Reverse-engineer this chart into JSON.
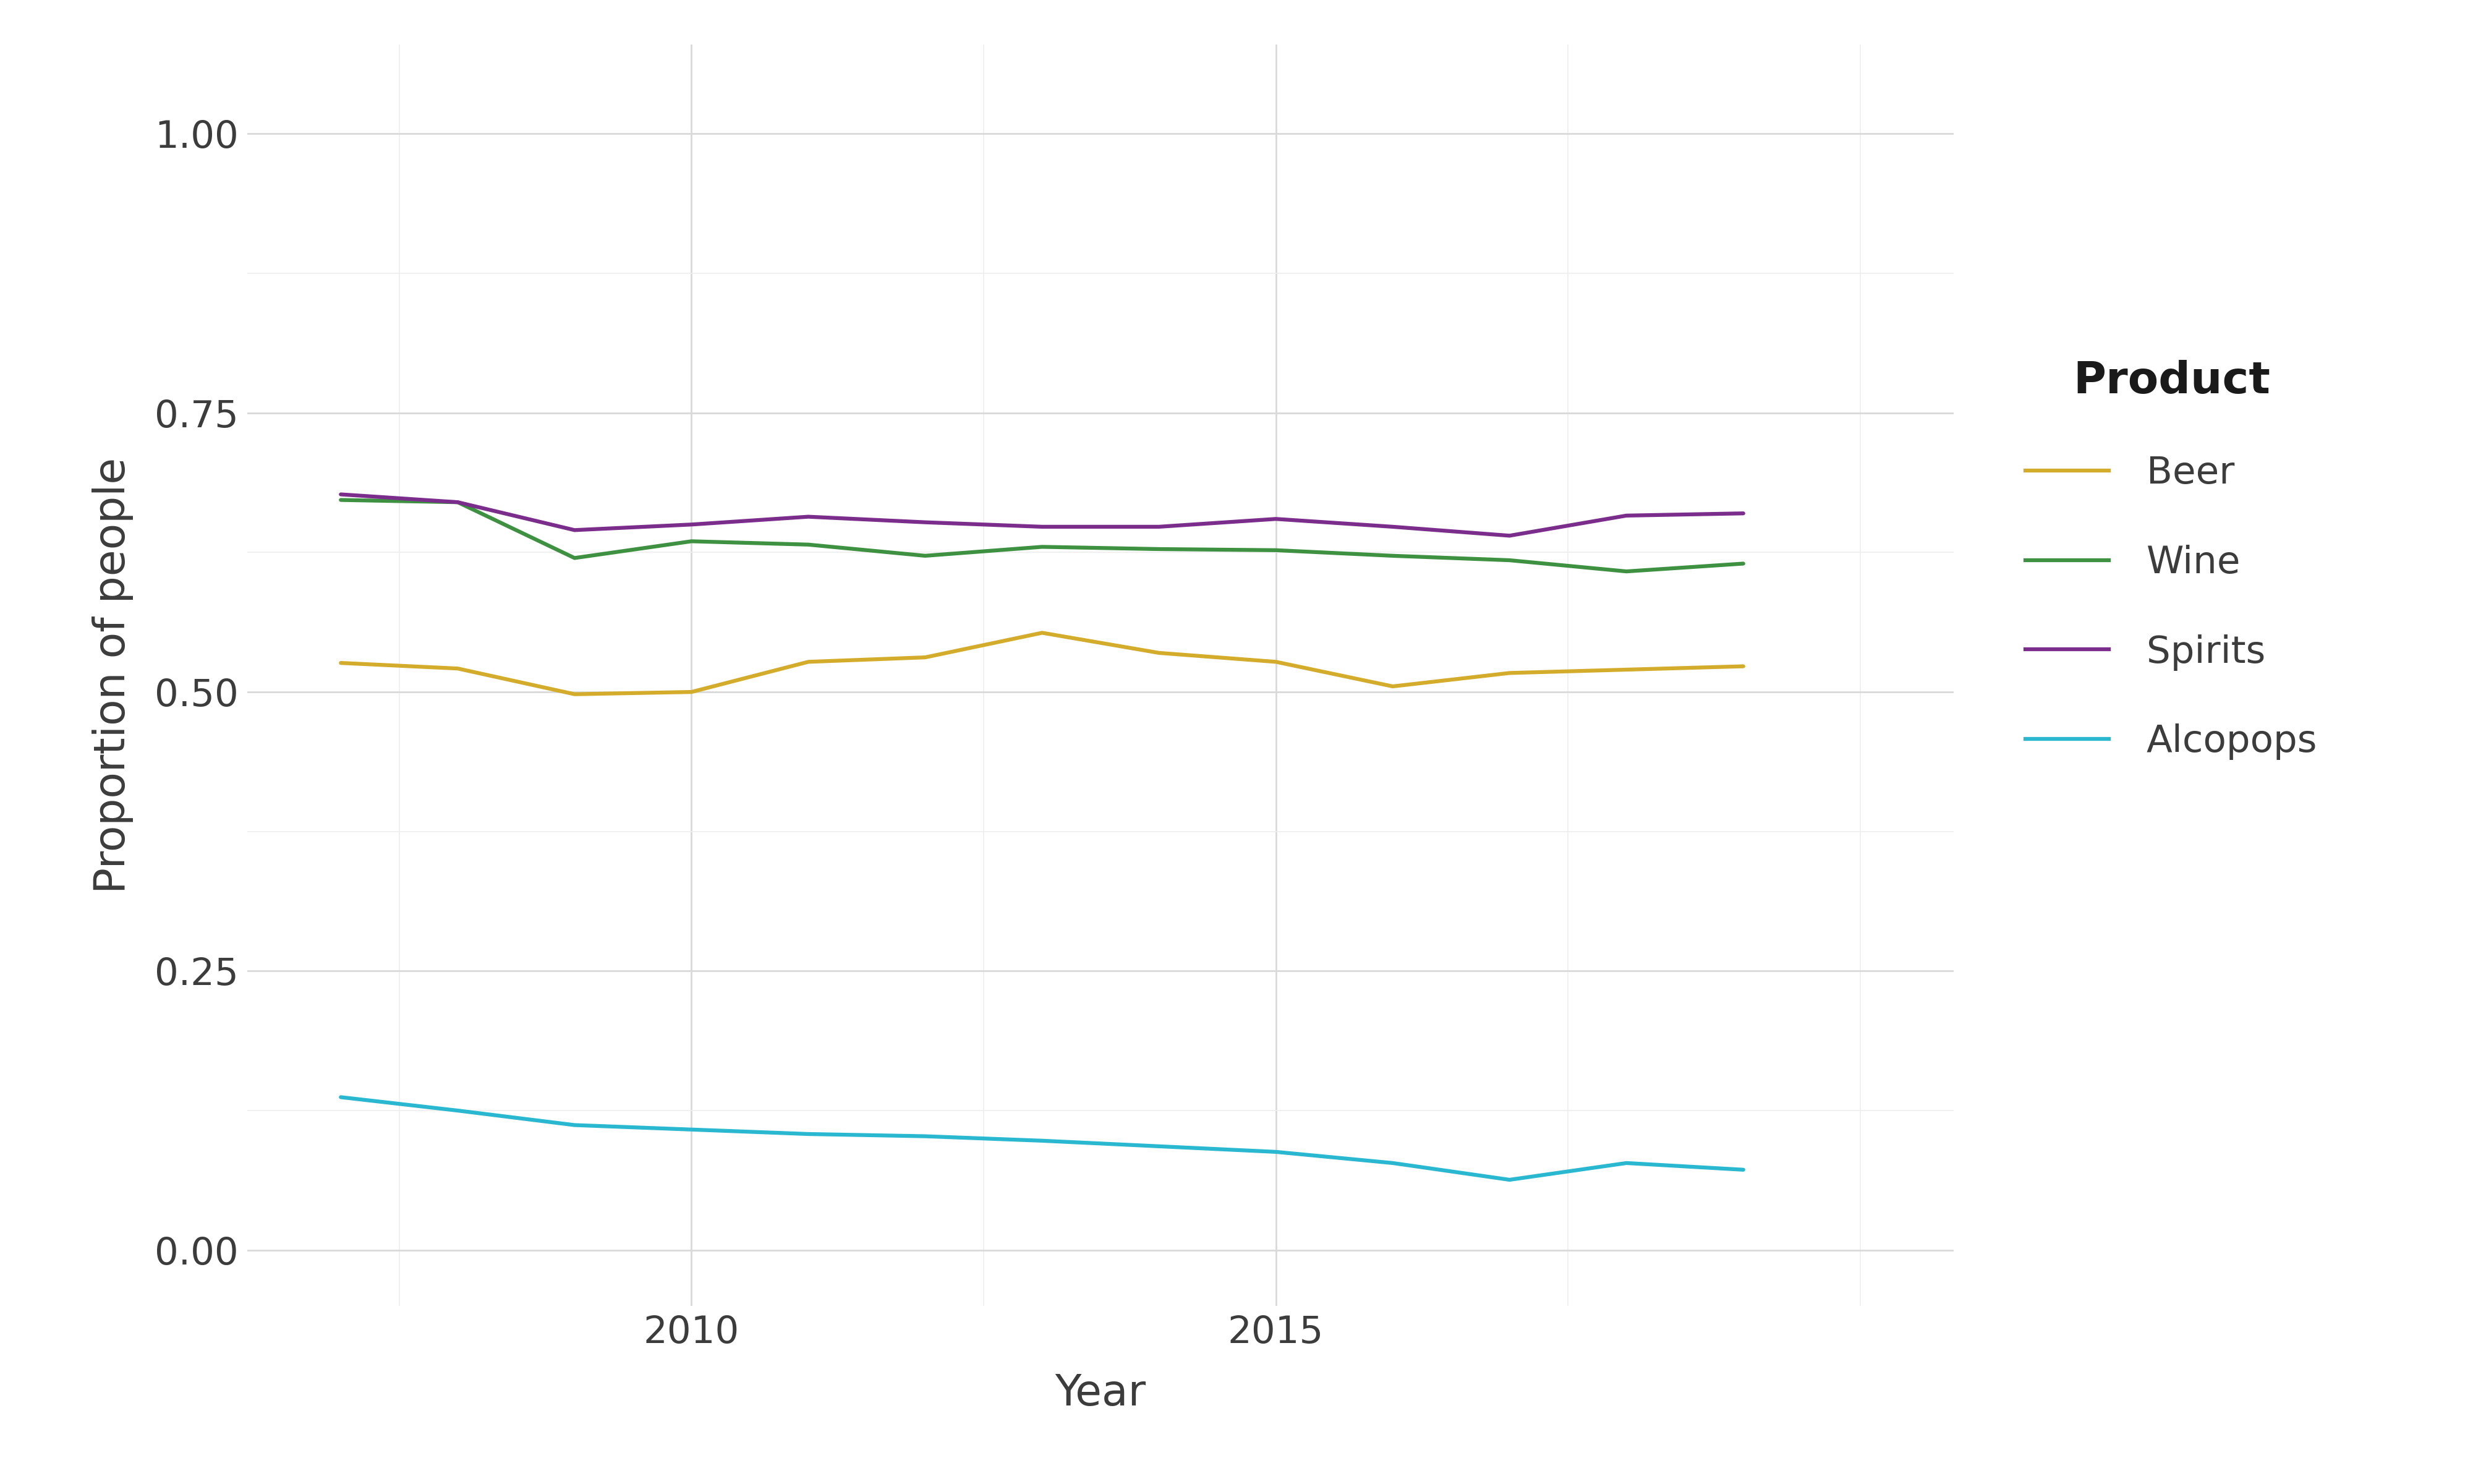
{
  "years": [
    2007,
    2008,
    2009,
    2010,
    2011,
    2012,
    2013,
    2014,
    2015,
    2016,
    2017,
    2018,
    2019
  ],
  "beer": [
    0.526,
    0.521,
    0.498,
    0.5,
    0.527,
    0.531,
    0.553,
    0.535,
    0.527,
    0.505,
    0.517,
    0.52,
    0.523
  ],
  "wine": [
    0.672,
    0.67,
    0.62,
    0.635,
    0.632,
    0.622,
    0.63,
    0.628,
    0.627,
    0.622,
    0.618,
    0.608,
    0.615
  ],
  "spirits": [
    0.677,
    0.67,
    0.645,
    0.65,
    0.657,
    0.652,
    0.648,
    0.648,
    0.655,
    0.648,
    0.64,
    0.658,
    0.66
  ],
  "alcopops": [
    0.137,
    0.125,
    0.112,
    0.108,
    0.104,
    0.102,
    0.098,
    0.093,
    0.088,
    0.078,
    0.063,
    0.078,
    0.072
  ],
  "beer_color": "#D4AC2B",
  "wine_color": "#3F9142",
  "spirits_color": "#7B2D8B",
  "alcopops_color": "#29B8D0",
  "background_color": "#FFFFFF",
  "panel_background": "#FFFFFF",
  "major_grid_color": "#D9D9D9",
  "minor_grid_color": "#EEEEEE",
  "xlabel": "Year",
  "ylabel": "Proportion of people",
  "legend_title": "Product",
  "legend_items": [
    "Beer",
    "Wine",
    "Spirits",
    "Alcopops"
  ],
  "ylim": [
    -0.05,
    1.08
  ],
  "yticks": [
    0.0,
    0.25,
    0.5,
    0.75,
    1.0
  ],
  "axis_text_color": "#3C3C3C",
  "legend_title_color": "#1A1A1A",
  "line_width": 4.5
}
